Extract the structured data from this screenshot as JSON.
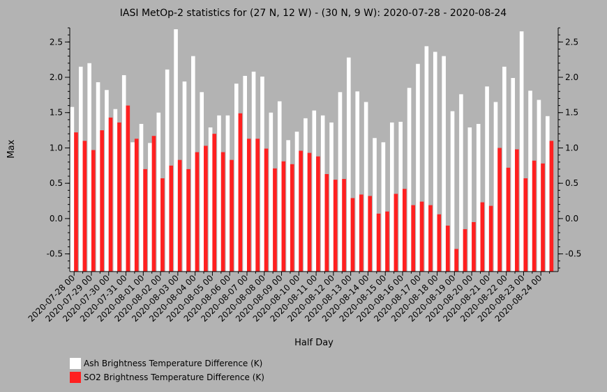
{
  "chart_data": {
    "type": "bar",
    "title": "IASI MetOp-2 statistics for (27 N, 12 W) - (30 N, 9 W): 2020-07-28 - 2020-08-24",
    "xlabel": "Half Day",
    "ylabel": "Max",
    "ylim": [
      -0.75,
      2.7
    ],
    "yticks": [
      -0.5,
      0.0,
      0.5,
      1.0,
      1.5,
      2.0,
      2.5
    ],
    "ytick_labels": [
      "-0.5",
      "0.0",
      "0.5",
      "1.0",
      "1.5",
      "2.0",
      "2.5"
    ],
    "bar_baseline": -0.75,
    "x_tick_labels": [
      "2020-07-28 00",
      "2020-07-29 00",
      "2020-07-30 00",
      "2020-07-31 00",
      "2020-08-01 00",
      "2020-08-02 00",
      "2020-08-03 00",
      "2020-08-04 00",
      "2020-08-05 00",
      "2020-08-06 00",
      "2020-08-07 00",
      "2020-08-08 00",
      "2020-08-09 00",
      "2020-08-10 00",
      "2020-08-11 00",
      "2020-08-12 00",
      "2020-08-13 00",
      "2020-08-14 00",
      "2020-08-15 00",
      "2020-08-16 00",
      "2020-08-17 00",
      "2020-08-18 00",
      "2020-08-19 00",
      "2020-08-20 00",
      "2020-08-21 00",
      "2020-08-22 00",
      "2020-08-23 00",
      "2020-08-24 00"
    ],
    "grid": false,
    "legend_position": "bottom-left",
    "series": [
      {
        "name": "Ash Brightness Temperature Difference (K)",
        "color": "#ffffff",
        "values": [
          1.58,
          2.15,
          2.2,
          1.93,
          1.82,
          1.55,
          2.03,
          1.08,
          1.34,
          1.07,
          1.5,
          2.11,
          2.68,
          1.94,
          2.3,
          1.79,
          1.29,
          1.46,
          1.46,
          1.91,
          2.02,
          2.08,
          2.01,
          1.5,
          1.66,
          1.11,
          1.23,
          1.42,
          1.53,
          1.46,
          1.36,
          1.79,
          2.28,
          1.8,
          1.65,
          1.14,
          1.08,
          1.36,
          1.37,
          1.85,
          2.19,
          2.44,
          2.36,
          2.3,
          1.52,
          1.76,
          1.29,
          1.34,
          1.87,
          1.65,
          2.15,
          1.99,
          2.65,
          1.81,
          1.68,
          1.45
        ]
      },
      {
        "name": "SO2 Brightness Temperature Difference (K)",
        "color": "#ff2020",
        "values": [
          1.22,
          1.1,
          0.97,
          1.25,
          1.43,
          1.36,
          1.6,
          1.13,
          0.7,
          1.17,
          0.57,
          0.75,
          0.83,
          0.7,
          0.94,
          1.03,
          1.2,
          0.94,
          0.83,
          1.49,
          1.13,
          1.13,
          0.99,
          0.71,
          0.81,
          0.77,
          0.96,
          0.93,
          0.88,
          0.63,
          0.55,
          0.56,
          0.29,
          0.34,
          0.32,
          0.07,
          0.1,
          0.35,
          0.42,
          0.19,
          0.24,
          0.19,
          0.06,
          -0.1,
          -0.43,
          -0.15,
          -0.05,
          0.23,
          0.18,
          1.0,
          0.72,
          0.98,
          0.57,
          0.82,
          0.78,
          1.1
        ]
      }
    ]
  }
}
